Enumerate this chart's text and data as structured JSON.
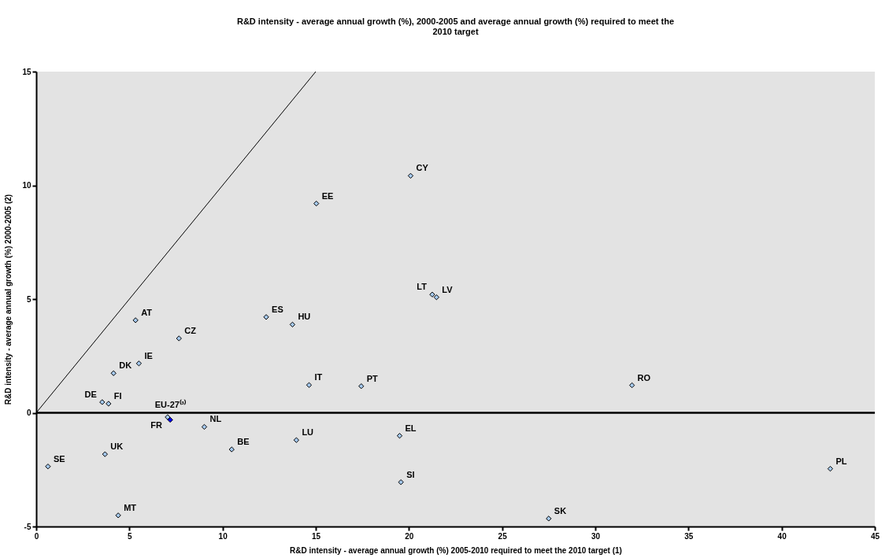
{
  "chart_data": {
    "type": "scatter",
    "title": "R&D intensity - average annual growth (%), 2000-2005 and average annual growth (%) required to meet the 2010 target",
    "xlabel": "R&D intensity - average annual growth (%) 2005-2010 required to meet the 2010 target (1)",
    "ylabel": "R&D intensity - average annual growth (%) 2000-2005 (2)",
    "xlim": [
      0,
      45
    ],
    "xticks": [
      0,
      5,
      10,
      15,
      20,
      25,
      30,
      35,
      40,
      45
    ],
    "ylim": [
      -5,
      15
    ],
    "yticks": [
      -5,
      0,
      5,
      10,
      15
    ],
    "grid": false,
    "marker": "diamond",
    "ref_lines": [
      {
        "axis": "y",
        "value": 0,
        "color": "#000000"
      }
    ],
    "series": [
      {
        "type": "line",
        "color": "#000000",
        "marker": "none",
        "x": [
          0,
          15
        ],
        "values": [
          0,
          15
        ]
      },
      {
        "name": "SE",
        "color": "#a6caf0",
        "x": [
          0.63
        ],
        "values": [
          -2.36
        ]
      },
      {
        "name": "UK",
        "color": "#a6caf0",
        "x": [
          3.69
        ],
        "values": [
          -1.82
        ]
      },
      {
        "name": "MT",
        "color": "#a6caf0",
        "x": [
          4.4
        ],
        "values": [
          -4.51
        ]
      },
      {
        "name": "DE",
        "color": "#a6caf0",
        "x": [
          3.54
        ],
        "values": [
          0.47
        ]
      },
      {
        "name": "FI",
        "color": "#a6caf0",
        "x": [
          3.88
        ],
        "values": [
          0.4
        ]
      },
      {
        "name": "DK",
        "color": "#a6caf0",
        "x": [
          4.15
        ],
        "values": [
          1.74
        ]
      },
      {
        "name": "IE",
        "color": "#a6caf0",
        "x": [
          5.51
        ],
        "values": [
          2.17
        ]
      },
      {
        "name": "AT",
        "color": "#a6caf0",
        "x": [
          5.33
        ],
        "values": [
          4.07
        ]
      },
      {
        "name": "CZ",
        "color": "#a6caf0",
        "x": [
          7.66
        ],
        "values": [
          3.27
        ]
      },
      {
        "name": "FR",
        "color": "#a6caf0",
        "x": [
          7.05
        ],
        "values": [
          -0.19
        ]
      },
      {
        "name": "EU-27⁽³⁾",
        "color": "#0000ff",
        "x": [
          7.19
        ],
        "values": [
          -0.31
        ]
      },
      {
        "name": "NL",
        "color": "#a6caf0",
        "x": [
          9.02
        ],
        "values": [
          -0.62
        ]
      },
      {
        "name": "BE",
        "color": "#a6caf0",
        "x": [
          10.49
        ],
        "values": [
          -1.61
        ]
      },
      {
        "name": "LU",
        "color": "#a6caf0",
        "x": [
          13.96
        ],
        "values": [
          -1.2
        ]
      },
      {
        "name": "ES",
        "color": "#a6caf0",
        "x": [
          12.34
        ],
        "values": [
          4.21
        ]
      },
      {
        "name": "HU",
        "color": "#a6caf0",
        "x": [
          13.75
        ],
        "values": [
          3.88
        ]
      },
      {
        "name": "IT",
        "color": "#a6caf0",
        "x": [
          14.64
        ],
        "values": [
          1.22
        ]
      },
      {
        "name": "EE",
        "color": "#a6caf0",
        "x": [
          15.03
        ],
        "values": [
          9.2
        ]
      },
      {
        "name": "CY",
        "color": "#a6caf0",
        "x": [
          20.09
        ],
        "values": [
          10.42
        ]
      },
      {
        "name": "LT",
        "color": "#a6caf0",
        "x": [
          21.25
        ],
        "values": [
          5.2
        ]
      },
      {
        "name": "LV",
        "color": "#a6caf0",
        "x": [
          21.48
        ],
        "values": [
          5.08
        ]
      },
      {
        "name": "PT",
        "color": "#a6caf0",
        "x": [
          17.44
        ],
        "values": [
          1.17
        ]
      },
      {
        "name": "EL",
        "color": "#a6caf0",
        "x": [
          19.5
        ],
        "values": [
          -1.01
        ]
      },
      {
        "name": "SI",
        "color": "#a6caf0",
        "x": [
          19.57
        ],
        "values": [
          -3.05
        ]
      },
      {
        "name": "SK",
        "color": "#a6caf0",
        "x": [
          27.5
        ],
        "values": [
          -4.65
        ]
      },
      {
        "name": "RO",
        "color": "#a6caf0",
        "x": [
          31.97
        ],
        "values": [
          1.21
        ]
      },
      {
        "name": "PL",
        "color": "#a6caf0",
        "x": [
          42.61
        ],
        "values": [
          -2.46
        ]
      }
    ]
  }
}
